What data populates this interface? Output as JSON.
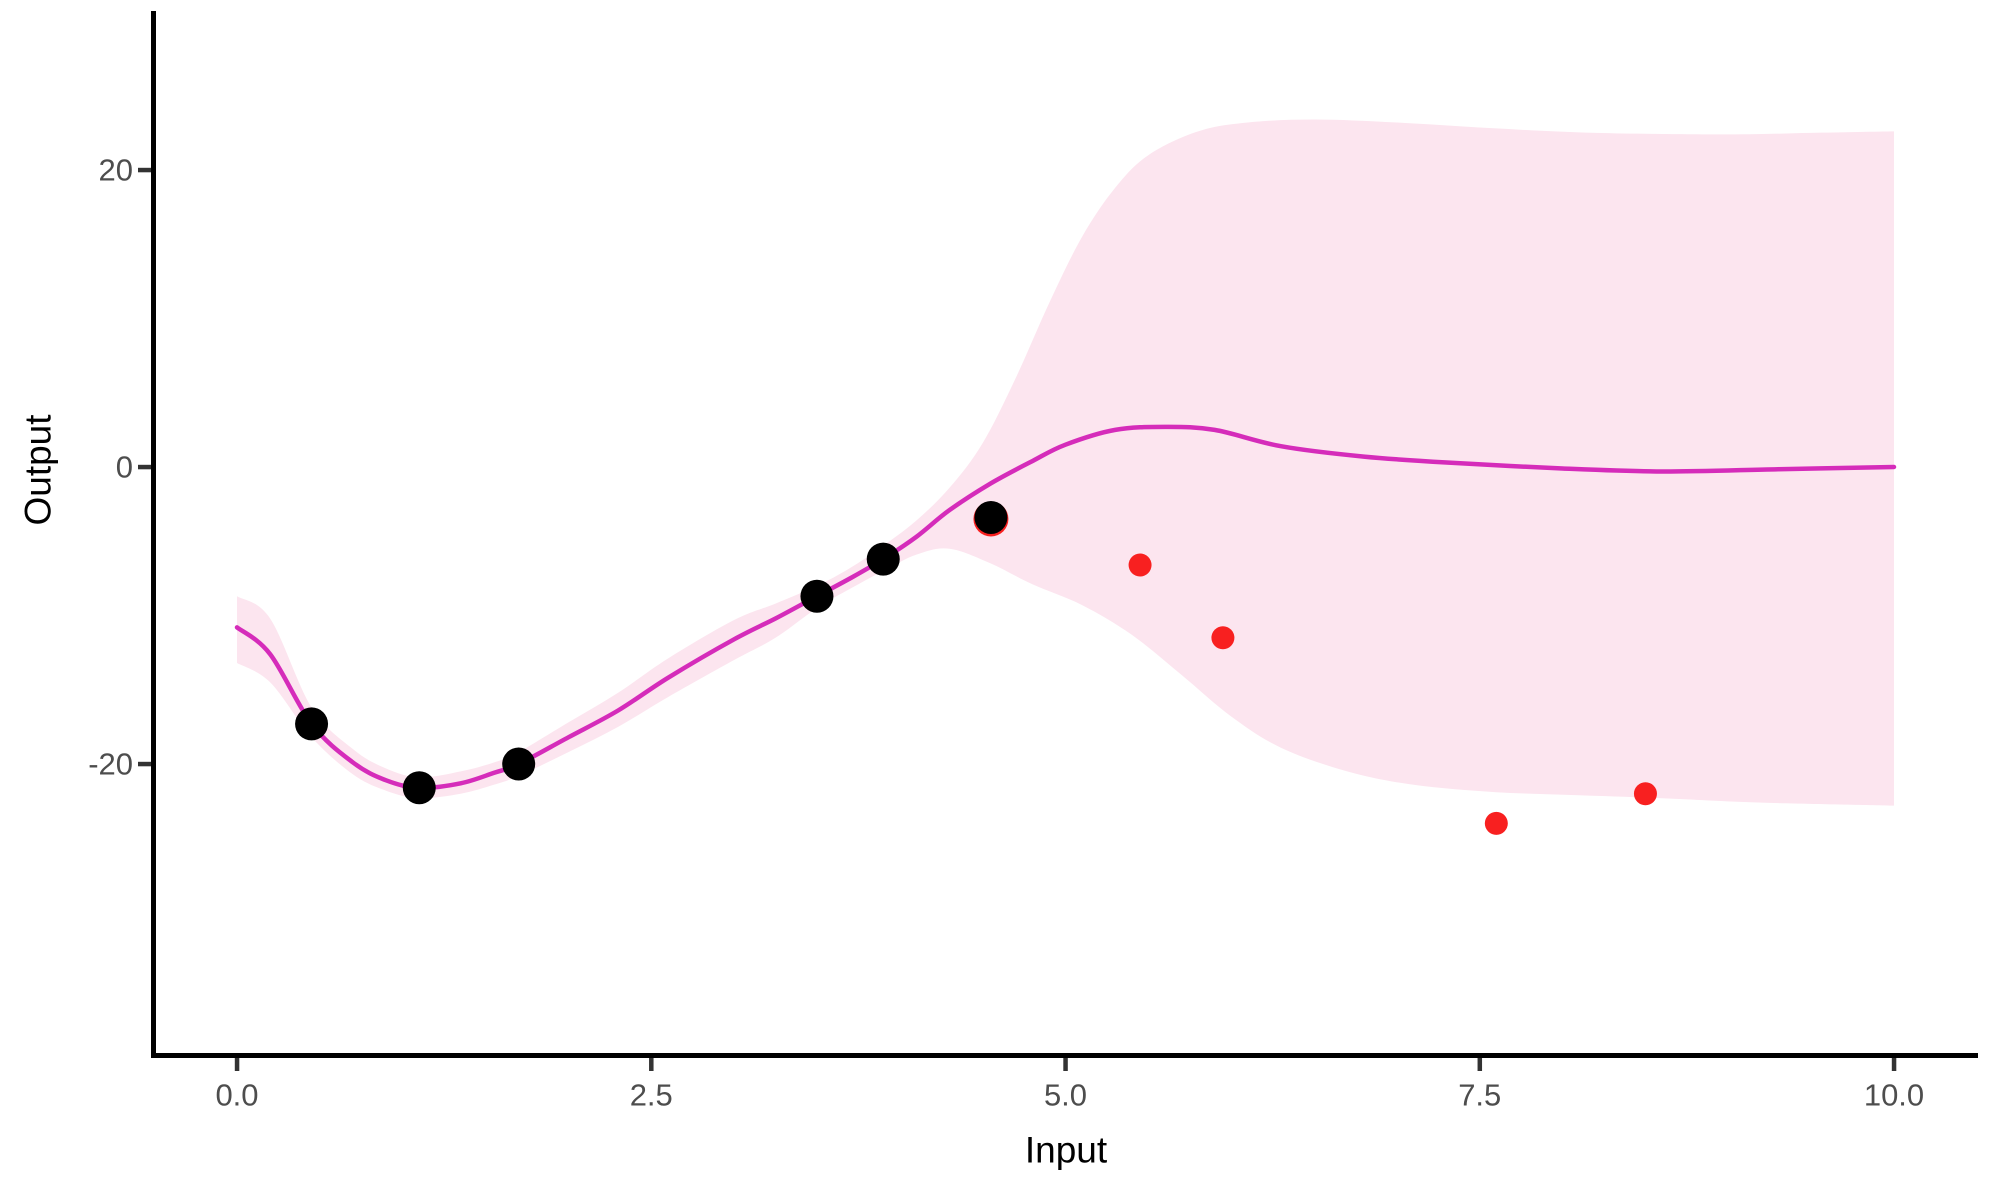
{
  "figure": {
    "background": "#ffffff",
    "axis_line_color": "#000000",
    "tick_color": "#333333",
    "tick_label_color": "#4d4d4d",
    "axis_title_color": "#000000"
  },
  "chart_data": {
    "type": "line",
    "subtype": "gp-regression-mean-with-credible-band-and-scatter",
    "title": "",
    "xlabel": "Input",
    "ylabel": "Output",
    "x_ticks": [
      "0.0",
      "2.5",
      "5.0",
      "7.5",
      "10.0"
    ],
    "x_tick_values": [
      0,
      2.5,
      5,
      7.5,
      10
    ],
    "y_ticks": [
      "20",
      "0",
      "-20"
    ],
    "y_tick_values": [
      20,
      0,
      -20
    ],
    "xlim": [
      -0.5,
      10.5
    ],
    "ylim": [
      -39.6,
      30.5
    ],
    "grid": false,
    "legend": false,
    "colors": {
      "mean_line": "#d52cba",
      "credible_band": "#fce5ef",
      "observed_points": "#000000",
      "held_out_points": "#f82020"
    },
    "series": [
      {
        "name": "credible-band",
        "type": "area",
        "fill": "#fce5ef",
        "x_range": [
          0,
          10
        ],
        "upper": [
          [
            0,
            -8.7
          ],
          [
            0.2,
            -10.2
          ],
          [
            0.45,
            -16.2
          ],
          [
            0.7,
            -19.0
          ],
          [
            0.9,
            -20.3
          ],
          [
            1.1,
            -20.9
          ],
          [
            1.35,
            -20.5
          ],
          [
            1.55,
            -19.9
          ],
          [
            1.7,
            -19.2
          ],
          [
            2.0,
            -17.2
          ],
          [
            2.3,
            -15.2
          ],
          [
            2.6,
            -12.9
          ],
          [
            3.0,
            -10.3
          ],
          [
            3.25,
            -9.2
          ],
          [
            3.5,
            -8.0
          ],
          [
            3.7,
            -6.8
          ],
          [
            3.9,
            -5.3
          ],
          [
            4.1,
            -3.6
          ],
          [
            4.3,
            -1.4
          ],
          [
            4.5,
            1.6
          ],
          [
            4.7,
            6.0
          ],
          [
            4.9,
            11.0
          ],
          [
            5.1,
            15.5
          ],
          [
            5.3,
            18.8
          ],
          [
            5.5,
            21.0
          ],
          [
            5.8,
            22.6
          ],
          [
            6.1,
            23.2
          ],
          [
            6.5,
            23.4
          ],
          [
            7.0,
            23.2
          ],
          [
            7.6,
            22.8
          ],
          [
            8.2,
            22.5
          ],
          [
            9.0,
            22.4
          ],
          [
            9.5,
            22.5
          ],
          [
            10,
            22.6
          ]
        ],
        "lower": [
          [
            0,
            -13.2
          ],
          [
            0.2,
            -14.5
          ],
          [
            0.45,
            -18.2
          ],
          [
            0.7,
            -20.7
          ],
          [
            0.9,
            -21.8
          ],
          [
            1.1,
            -22.3
          ],
          [
            1.35,
            -22.0
          ],
          [
            1.55,
            -21.4
          ],
          [
            1.7,
            -20.8
          ],
          [
            2.0,
            -19.2
          ],
          [
            2.3,
            -17.5
          ],
          [
            2.6,
            -15.5
          ],
          [
            3.0,
            -13.0
          ],
          [
            3.25,
            -11.5
          ],
          [
            3.5,
            -9.5
          ],
          [
            3.7,
            -8.2
          ],
          [
            3.9,
            -7.0
          ],
          [
            4.1,
            -5.9
          ],
          [
            4.3,
            -5.5
          ],
          [
            4.55,
            -6.5
          ],
          [
            4.8,
            -7.9
          ],
          [
            5.1,
            -9.3
          ],
          [
            5.4,
            -11.3
          ],
          [
            5.7,
            -14.0
          ],
          [
            6.0,
            -16.8
          ],
          [
            6.3,
            -18.9
          ],
          [
            6.7,
            -20.5
          ],
          [
            7.1,
            -21.4
          ],
          [
            7.6,
            -21.9
          ],
          [
            8.1,
            -22.1
          ],
          [
            8.6,
            -22.3
          ],
          [
            9.2,
            -22.6
          ],
          [
            10,
            -22.8
          ]
        ]
      },
      {
        "name": "posterior-mean",
        "type": "line",
        "color": "#d52cba",
        "width": 4.5,
        "points": [
          [
            0,
            -10.8
          ],
          [
            0.2,
            -12.6
          ],
          [
            0.45,
            -17.3
          ],
          [
            0.7,
            -19.9
          ],
          [
            0.9,
            -21.1
          ],
          [
            1.1,
            -21.6
          ],
          [
            1.35,
            -21.3
          ],
          [
            1.55,
            -20.6
          ],
          [
            1.7,
            -20.0
          ],
          [
            2.0,
            -18.2
          ],
          [
            2.3,
            -16.4
          ],
          [
            2.6,
            -14.2
          ],
          [
            3.0,
            -11.6
          ],
          [
            3.25,
            -10.2
          ],
          [
            3.5,
            -8.7
          ],
          [
            3.7,
            -7.5
          ],
          [
            3.9,
            -6.2
          ],
          [
            4.1,
            -4.7
          ],
          [
            4.3,
            -2.9
          ],
          [
            4.55,
            -1.1
          ],
          [
            4.8,
            0.4
          ],
          [
            5.0,
            1.5
          ],
          [
            5.3,
            2.5
          ],
          [
            5.6,
            2.7
          ],
          [
            5.9,
            2.5
          ],
          [
            6.3,
            1.4
          ],
          [
            6.8,
            0.7
          ],
          [
            7.3,
            0.3
          ],
          [
            8.0,
            -0.1
          ],
          [
            8.6,
            -0.3
          ],
          [
            9.3,
            -0.15
          ],
          [
            10,
            0
          ]
        ]
      },
      {
        "name": "observed-points",
        "type": "scatter",
        "color": "#000000",
        "points": [
          [
            0.45,
            -17.3
          ],
          [
            1.1,
            -21.6
          ],
          [
            1.7,
            -20.0
          ],
          [
            3.5,
            -8.7
          ],
          [
            3.9,
            -6.2
          ],
          [
            4.55,
            -3.4
          ]
        ]
      },
      {
        "name": "held-out-points",
        "type": "scatter",
        "color": "#f82020",
        "points": [
          [
            5.45,
            -6.6
          ],
          [
            5.95,
            -11.5
          ],
          [
            7.6,
            -24.0
          ],
          [
            8.5,
            -22.0
          ]
        ],
        "overlapped_point": {
          "x": 4.55,
          "y": -3.5,
          "note": "red point partially hidden behind black observed point"
        }
      }
    ]
  }
}
